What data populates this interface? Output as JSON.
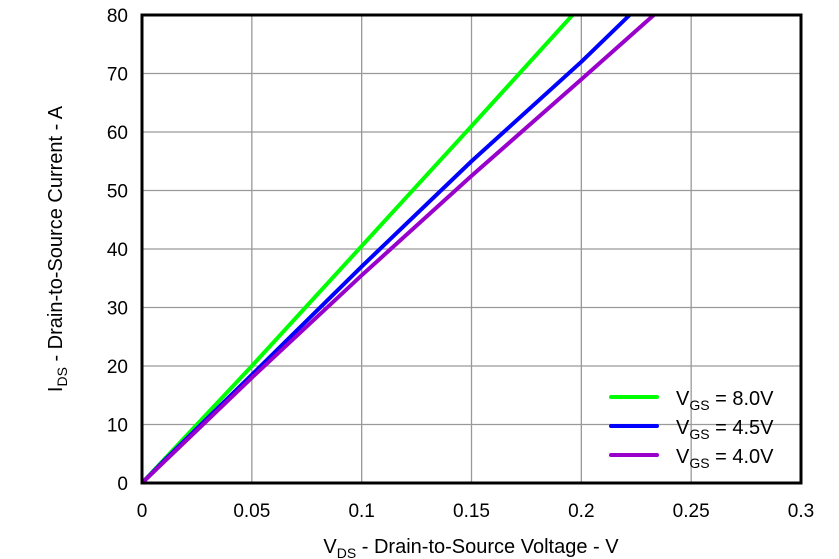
{
  "chart_data": {
    "type": "line",
    "title": "",
    "xlabel": "VDS - Drain-to-Source Voltage - V",
    "xlabel_parts": {
      "main": "V",
      "sub": "DS",
      "rest": " - Drain-to-Source Voltage - V"
    },
    "ylabel": "IDS - Drain-to-Source Current - A",
    "ylabel_parts": {
      "main": "I",
      "sub": "DS",
      "rest": " - Drain-to-Source Current - A"
    },
    "xlim": [
      0,
      0.3
    ],
    "ylim": [
      0,
      80
    ],
    "xticks": [
      "0",
      "0.05",
      "0.1",
      "0.15",
      "0.2",
      "0.25",
      "0.3"
    ],
    "yticks": [
      "0",
      "10",
      "20",
      "30",
      "40",
      "50",
      "60",
      "70",
      "80"
    ],
    "grid": true,
    "legend_position": "lower right",
    "series": [
      {
        "name": "VGS = 8.0V",
        "label_main": "V",
        "label_sub": "GS",
        "label_rest": " = 8.0V",
        "color": "#00ff00",
        "x": [
          0,
          0.01,
          0.05,
          0.1,
          0.15,
          0.196
        ],
        "y": [
          0,
          4,
          20,
          40.5,
          61,
          80
        ]
      },
      {
        "name": "VGS = 4.5V",
        "label_main": "V",
        "label_sub": "GS",
        "label_rest": " = 4.5V",
        "color": "#0000ff",
        "x": [
          0,
          0.01,
          0.05,
          0.1,
          0.15,
          0.2,
          0.222
        ],
        "y": [
          0,
          3.8,
          18.5,
          37,
          55,
          72,
          80
        ]
      },
      {
        "name": "VGS = 4.0V",
        "label_main": "V",
        "label_sub": "GS",
        "label_rest": " = 4.0V",
        "color": "#9900cc",
        "x": [
          0,
          0.01,
          0.05,
          0.1,
          0.15,
          0.2,
          0.233
        ],
        "y": [
          0,
          3.6,
          18,
          35.5,
          52.5,
          69,
          80
        ]
      }
    ]
  }
}
